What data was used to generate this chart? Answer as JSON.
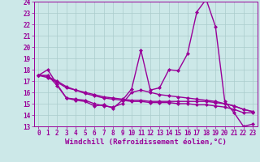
{
  "x": [
    0,
    1,
    2,
    3,
    4,
    5,
    6,
    7,
    8,
    9,
    10,
    11,
    12,
    13,
    14,
    15,
    16,
    17,
    18,
    19,
    20,
    21,
    22,
    23
  ],
  "main_line": [
    17.5,
    18.0,
    16.7,
    15.5,
    15.3,
    15.2,
    14.8,
    14.9,
    14.6,
    15.3,
    16.3,
    19.7,
    16.2,
    16.4,
    18.0,
    17.9,
    19.4,
    23.1,
    24.2,
    21.8,
    15.2,
    14.2,
    13.0,
    13.2
  ],
  "line2": [
    17.5,
    17.5,
    16.6,
    15.5,
    15.4,
    15.3,
    15.0,
    14.8,
    14.7,
    15.0,
    16.0,
    16.2,
    16.0,
    15.8,
    15.7,
    15.6,
    15.5,
    15.4,
    15.3,
    15.2,
    15.0,
    14.8,
    14.5,
    14.3
  ],
  "line3": [
    17.5,
    17.4,
    17.0,
    16.5,
    16.2,
    16.0,
    15.8,
    15.6,
    15.5,
    15.4,
    15.3,
    15.3,
    15.2,
    15.2,
    15.2,
    15.2,
    15.2,
    15.2,
    15.2,
    15.1,
    15.0,
    14.8,
    14.5,
    14.3
  ],
  "line4": [
    17.5,
    17.3,
    16.9,
    16.4,
    16.2,
    15.9,
    15.7,
    15.5,
    15.4,
    15.3,
    15.2,
    15.2,
    15.1,
    15.1,
    15.1,
    15.0,
    15.0,
    14.9,
    14.9,
    14.8,
    14.7,
    14.5,
    14.2,
    14.2
  ],
  "line_color": "#990099",
  "bg_color": "#cce8e8",
  "grid_color": "#aacccc",
  "ylim": [
    13,
    24
  ],
  "xlim": [
    -0.5,
    23.5
  ],
  "yticks": [
    13,
    14,
    15,
    16,
    17,
    18,
    19,
    20,
    21,
    22,
    23,
    24
  ],
  "xticks": [
    0,
    1,
    2,
    3,
    4,
    5,
    6,
    7,
    8,
    9,
    10,
    11,
    12,
    13,
    14,
    15,
    16,
    17,
    18,
    19,
    20,
    21,
    22,
    23
  ],
  "xlabel": "Windchill (Refroidissement éolien,°C)",
  "marker": "D",
  "marker_size": 2,
  "line_width": 1.0,
  "tick_fontsize": 5.5,
  "label_fontsize": 6.5
}
